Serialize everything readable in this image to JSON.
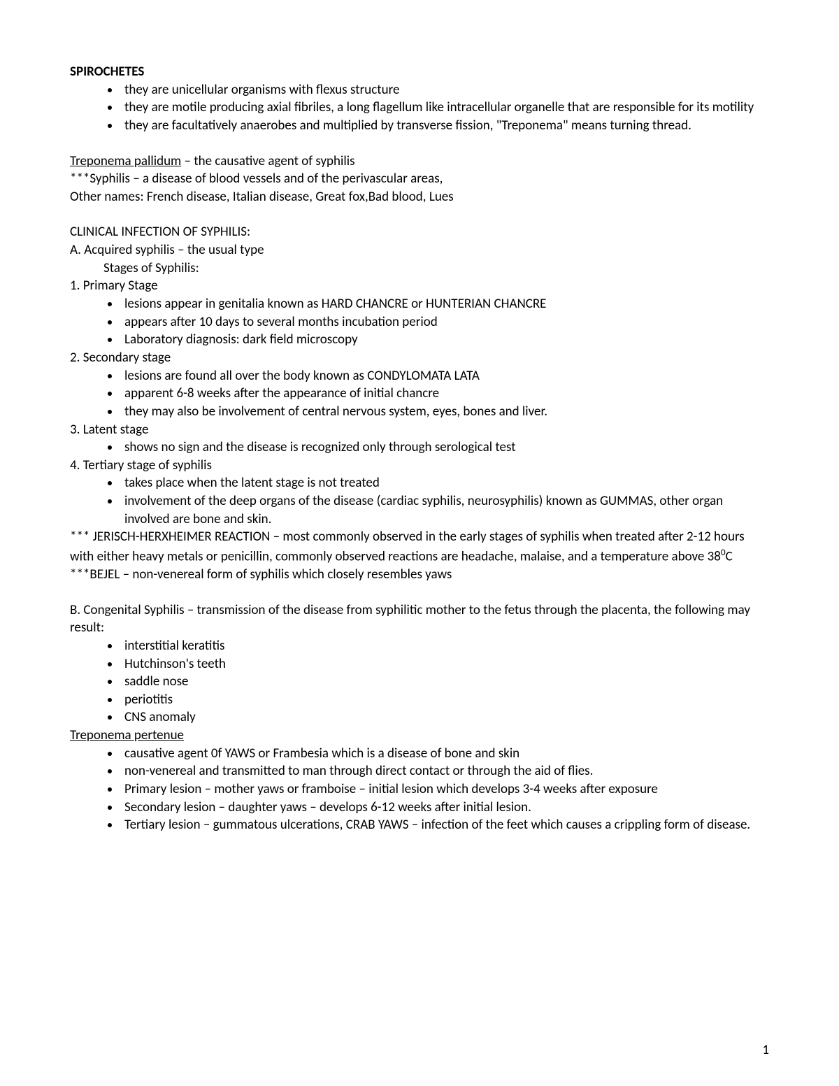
{
  "title": "SPIROCHETES",
  "intro_bullets": [
    "they are unicellular organisms with flexus structure",
    "they are motile producing axial fibriles, a long flagellum like intracellular organelle that are responsible for its motility",
    "they are facultatively anaerobes and multiplied by transverse fission, \"Treponema\" means turning thread."
  ],
  "tpallidum_heading_underlined": "Treponema pallidum",
  "tpallidum_heading_rest": " – the causative agent of syphilis",
  "syphilis_note": "***Syphilis – a disease of blood vessels and of the perivascular areas,",
  "other_names": "Other names: French disease, Italian disease, Great fox,Bad blood, Lues",
  "clinical_heading": "CLINICAL INFECTION OF SYPHILIS:",
  "acquired_heading": "A. Acquired syphilis – the usual type",
  "stages_label": "Stages of Syphilis:",
  "stage1_heading": "1. Primary Stage",
  "stage1_bullets": [
    "lesions appear in genitalia known as HARD CHANCRE or HUNTERIAN CHANCRE",
    "appears after 10 days to several months incubation period",
    "Laboratory diagnosis: dark field microscopy"
  ],
  "stage2_heading": "2. Secondary stage",
  "stage2_bullets": [
    "lesions are found all over the body known as CONDYLOMATA LATA",
    "apparent 6-8 weeks after the appearance of initial chancre",
    "they may also be involvement of central nervous system, eyes, bones and liver."
  ],
  "stage3_heading": "3. Latent stage",
  "stage3_bullets": [
    "shows no sign and the disease is recognized only through serological test"
  ],
  "stage4_heading": "4. Tertiary stage of syphilis",
  "stage4_bullets": [
    "takes place when the latent stage is not treated",
    "involvement of the deep organs of the disease (cardiac syphilis, neurosyphilis) known as GUMMAS, other organ involved are bone and skin."
  ],
  "jerisch_prefix": "*** JERISCH-HERXHEIMER REACTION – most commonly observed  in the early stages of syphilis when treated after 2-12 hours with either heavy metals or penicillin, commonly observed reactions are headache, malaise, and a temperature above 38",
  "jerisch_sup": "0",
  "jerisch_suffix": "C",
  "bejel_note": "***BEJEL – non-venereal form of syphilis which closely resembles yaws",
  "congenital_heading": "B. Congenital Syphilis – transmission of the disease from syphilitic mother to the fetus through the placenta, the following may result:",
  "congenital_bullets": [
    "interstitial keratitis",
    "Hutchinson's teeth",
    "saddle nose",
    "periotitis",
    "CNS anomaly"
  ],
  "pertenue_heading": "Treponema pertenue",
  "pertenue_bullets": [
    "causative agent 0f YAWS or Frambesia which is a disease of bone and skin",
    "non-venereal and transmitted to man through direct contact or through the aid of flies.",
    "Primary lesion – mother yaws or framboise – initial lesion which develops 3-4 weeks after exposure",
    "Secondary lesion – daughter yaws – develops 6-12 weeks after initial lesion.",
    "Tertiary lesion – gummatous ulcerations, CRAB YAWS – infection of the feet which causes a crippling form of disease."
  ],
  "page_number": "1"
}
